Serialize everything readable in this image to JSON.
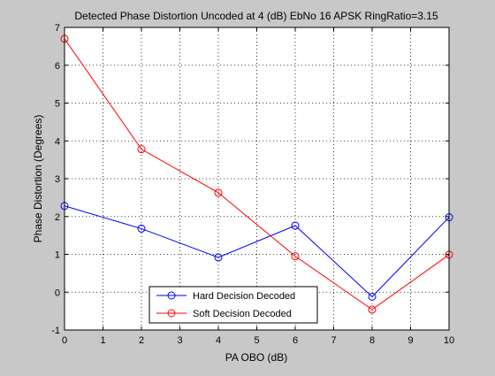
{
  "chart_data": {
    "type": "line",
    "title": "Detected Phase Distortion Uncoded at 4 (dB) EbNo 16 APSK RingRatio=3.15",
    "xlabel": "PA OBO (dB)",
    "ylabel": "Phase Distortion (Degrees)",
    "xlim": [
      0,
      10
    ],
    "ylim": [
      -1,
      7
    ],
    "xticks": [
      "0",
      "1",
      "2",
      "3",
      "4",
      "5",
      "6",
      "7",
      "8",
      "9",
      "10"
    ],
    "yticks": [
      "-1",
      "0",
      "1",
      "2",
      "3",
      "4",
      "5",
      "6",
      "7"
    ],
    "grid": true,
    "legend_position": "bottom-center",
    "x": [
      0,
      2,
      4,
      6,
      8,
      10
    ],
    "series": [
      {
        "name": "Hard Decision Decoded",
        "values": [
          2.28,
          1.68,
          0.92,
          1.76,
          -0.12,
          1.98
        ],
        "color": "#0000ff",
        "marker": "circle"
      },
      {
        "name": "Soft Decision Decoded",
        "values": [
          6.7,
          3.78,
          2.63,
          0.95,
          -0.46,
          0.99
        ],
        "color": "#ff0000",
        "marker": "circle"
      }
    ]
  }
}
